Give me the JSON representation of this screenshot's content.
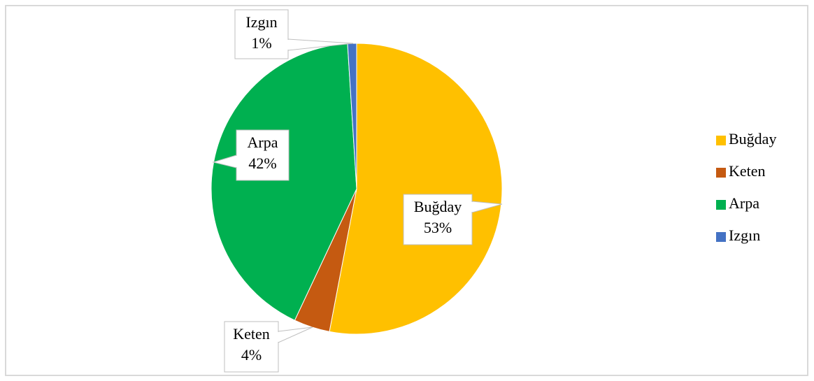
{
  "chart_data": {
    "type": "pie",
    "categories": [
      "Buğday",
      "Keten",
      "Arpa",
      "Izgın"
    ],
    "values": [
      53,
      4,
      42,
      1
    ],
    "value_labels": [
      "53%",
      "4%",
      "42%",
      "1%"
    ],
    "colors": [
      "#FFC000",
      "#C55A11",
      "#00B050",
      "#4472C4"
    ],
    "legend": "right"
  }
}
